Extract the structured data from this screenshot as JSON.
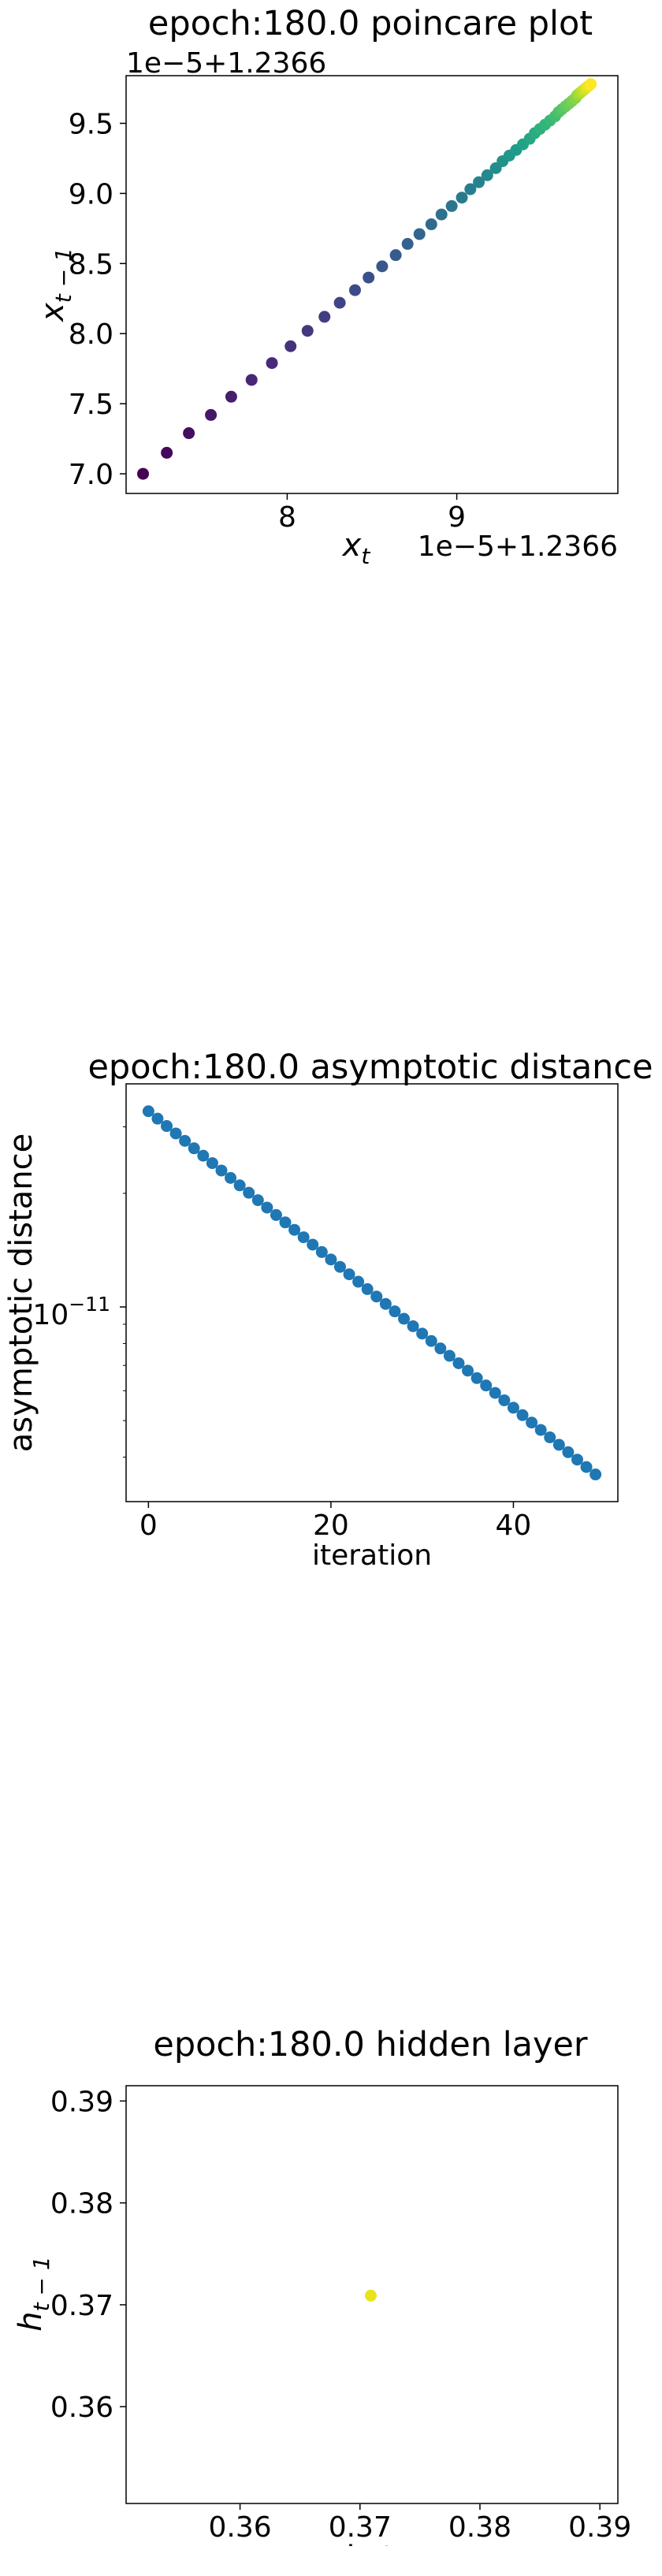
{
  "chart_data": [
    {
      "type": "scatter",
      "title": "epoch:180.0 poincare plot",
      "xlabel": "x",
      "xlabel_sub": "t",
      "ylabel": "x",
      "ylabel_sub": "t − 1",
      "offset_text_x": "1e−5+1.2366",
      "offset_text_y": "1e−5+1.2366",
      "offset": 1.2366,
      "offset_scale": 1e-05,
      "xlim": [
        7.05,
        9.95
      ],
      "ylim": [
        6.86,
        9.84
      ],
      "xticks": [
        8,
        9
      ],
      "xtick_labels": [
        "8",
        "9"
      ],
      "yticks": [
        7.0,
        7.5,
        8.0,
        8.5,
        9.0,
        9.5
      ],
      "ytick_labels": [
        "7.0",
        "7.5",
        "8.0",
        "8.5",
        "9.0",
        "9.5"
      ],
      "colormap": "viridis",
      "color_by": "order",
      "x": [
        7.15,
        7.29,
        7.42,
        7.55,
        7.67,
        7.79,
        7.91,
        8.02,
        8.12,
        8.22,
        8.31,
        8.4,
        8.48,
        8.56,
        8.64,
        8.71,
        8.78,
        8.85,
        8.91,
        8.97,
        9.03,
        9.08,
        9.13,
        9.18,
        9.23,
        9.27,
        9.31,
        9.35,
        9.39,
        9.43,
        9.46,
        9.49,
        9.52,
        9.55,
        9.58,
        9.6,
        9.62,
        9.64,
        9.66,
        9.68,
        9.7,
        9.71,
        9.72,
        9.73,
        9.74,
        9.75,
        9.76,
        9.77,
        9.78,
        9.79
      ],
      "y": [
        7.0,
        7.15,
        7.29,
        7.42,
        7.55,
        7.67,
        7.79,
        7.91,
        8.02,
        8.12,
        8.22,
        8.31,
        8.4,
        8.48,
        8.56,
        8.64,
        8.71,
        8.78,
        8.85,
        8.91,
        8.97,
        9.03,
        9.08,
        9.13,
        9.18,
        9.23,
        9.27,
        9.31,
        9.35,
        9.39,
        9.43,
        9.46,
        9.49,
        9.52,
        9.55,
        9.58,
        9.6,
        9.62,
        9.64,
        9.66,
        9.68,
        9.7,
        9.71,
        9.72,
        9.73,
        9.74,
        9.75,
        9.76,
        9.77,
        9.78
      ]
    },
    {
      "type": "scatter",
      "title": "epoch:180.0 asymptotic distance",
      "xlabel": "iteration",
      "ylabel": "asymptotic distance",
      "yscale": "log",
      "xlim": [
        -2.45,
        51.45
      ],
      "ylim": [
        3.05e-12,
        3.9e-11
      ],
      "xticks": [
        0,
        20,
        40
      ],
      "xtick_labels": [
        "0",
        "20",
        "40"
      ],
      "ytick_label_base": "10",
      "ytick_label_exp": "−11",
      "color": "#1f77b4",
      "x": [
        0,
        1,
        2,
        3,
        4,
        5,
        6,
        7,
        8,
        9,
        10,
        11,
        12,
        13,
        14,
        15,
        16,
        17,
        18,
        19,
        20,
        21,
        22,
        23,
        24,
        25,
        26,
        27,
        28,
        29,
        30,
        31,
        32,
        33,
        34,
        35,
        36,
        37,
        38,
        39,
        40,
        41,
        42,
        43,
        44,
        45,
        46,
        47,
        48,
        49
      ],
      "y_first": 3.3e-11,
      "y_last": 3.6e-12
    },
    {
      "type": "scatter",
      "title": "epoch:180.0 hidden layer",
      "xlabel": "h_t",
      "ylabel": "h",
      "ylabel_sub": "t − 1",
      "xlim": [
        0.3505,
        0.3915
      ],
      "ylim": [
        0.3505,
        0.3915
      ],
      "xticks": [
        0.36,
        0.37,
        0.38,
        0.39
      ],
      "xtick_labels": [
        "0.36",
        "0.37",
        "0.38",
        "0.39"
      ],
      "yticks": [
        0.36,
        0.37,
        0.38,
        0.39
      ],
      "ytick_labels": [
        "0.36",
        "0.37",
        "0.38",
        "0.39"
      ],
      "color": "#e8e419",
      "x": [
        0.3709
      ],
      "y": [
        0.3709
      ]
    }
  ]
}
